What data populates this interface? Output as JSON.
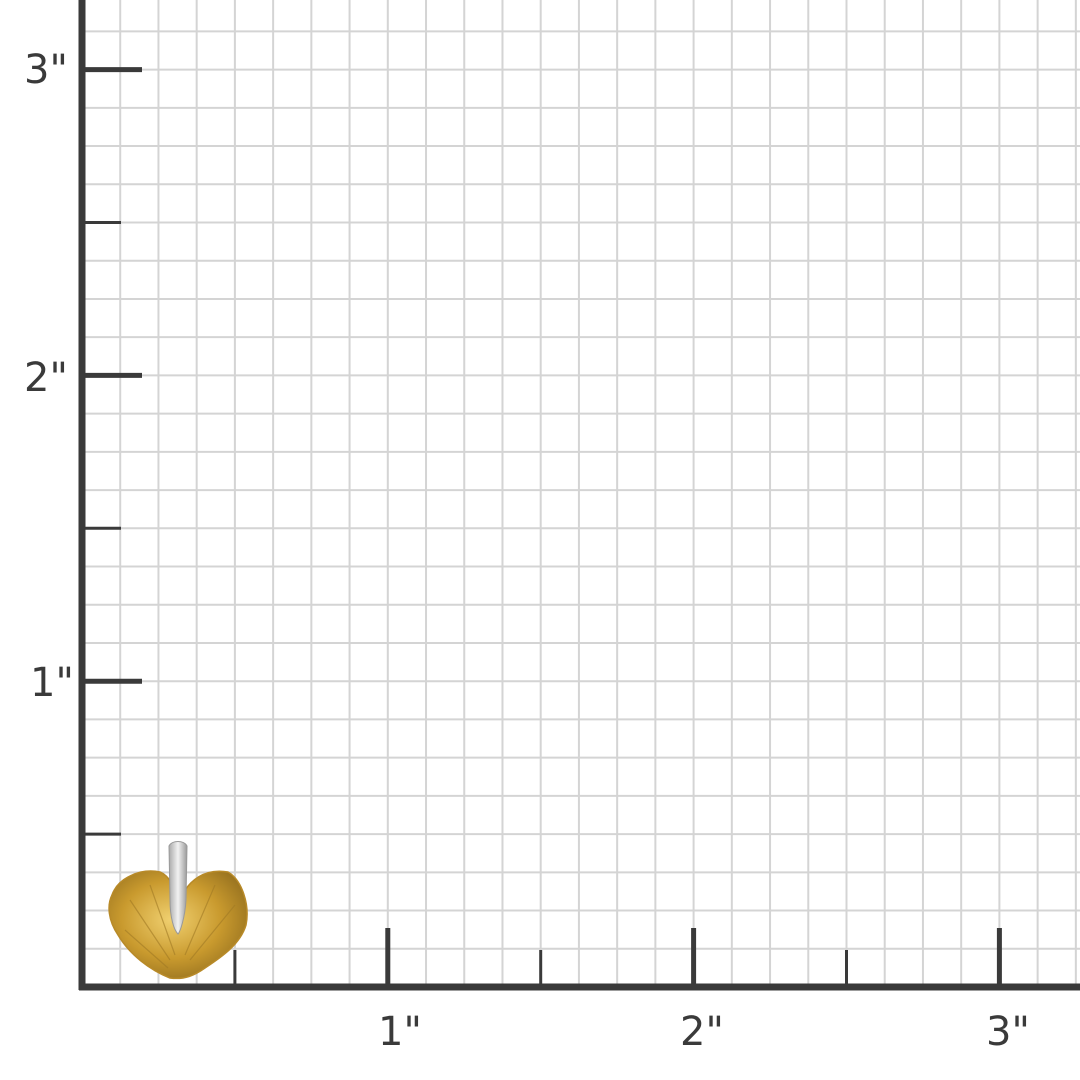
{
  "chart_data": {
    "type": "size-grid",
    "unit": "inch",
    "grid_subdivisions_per_unit": 8,
    "grid": true,
    "x_ticks": [
      {
        "value": 1,
        "label": "1\""
      },
      {
        "value": 2,
        "label": "2\""
      },
      {
        "value": 3,
        "label": "3\""
      }
    ],
    "y_ticks": [
      {
        "value": 1,
        "label": "1\""
      },
      {
        "value": 2,
        "label": "2\""
      },
      {
        "value": 3,
        "label": "3\""
      }
    ],
    "xlim": [
      0,
      3.3
    ],
    "ylim": [
      0,
      3.2
    ]
  },
  "product": {
    "icon": "gold-leaf-pendant-with-diamond-bail-icon",
    "approx_width_in": 0.45,
    "approx_height_in": 0.46
  },
  "colors": {
    "axis": "#3a3a3a",
    "grid": "#d4d4d4",
    "gold": "#d4aa3a",
    "bail": "#d8d8d8"
  }
}
